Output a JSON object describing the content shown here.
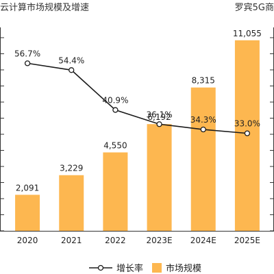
{
  "header": {
    "title_left": "云计算市场规模及增速",
    "title_right": "罗宾5G商"
  },
  "chart_data": {
    "type": "bar",
    "categories": [
      "2020",
      "2021",
      "2022",
      "2023E",
      "2024E",
      "2025E"
    ],
    "series": [
      {
        "name": "市场规模",
        "type": "bar",
        "axis": "left",
        "values": [
          2091,
          3229,
          4550,
          6192,
          8315,
          11055
        ],
        "value_labels": [
          "2,091",
          "3,229",
          "4,550",
          "6,192",
          "8,315",
          "11,055"
        ]
      },
      {
        "name": "增长率",
        "type": "line",
        "axis": "right",
        "values": [
          56.7,
          54.4,
          40.9,
          36.1,
          34.3,
          33.0
        ],
        "value_labels": [
          "56.7%",
          "54.4%",
          "40.9%",
          "36.1%",
          "34.3%",
          "33.0%"
        ]
      }
    ],
    "ylim_left": [
      0,
      12000
    ],
    "ylim_right": [
      0,
      70
    ],
    "grid": false,
    "legend_position": "bottom",
    "colors": {
      "bar": "#FDB750",
      "line": "#1a1a1a",
      "marker_fill": "#ffffff",
      "axis": "#333333"
    }
  }
}
